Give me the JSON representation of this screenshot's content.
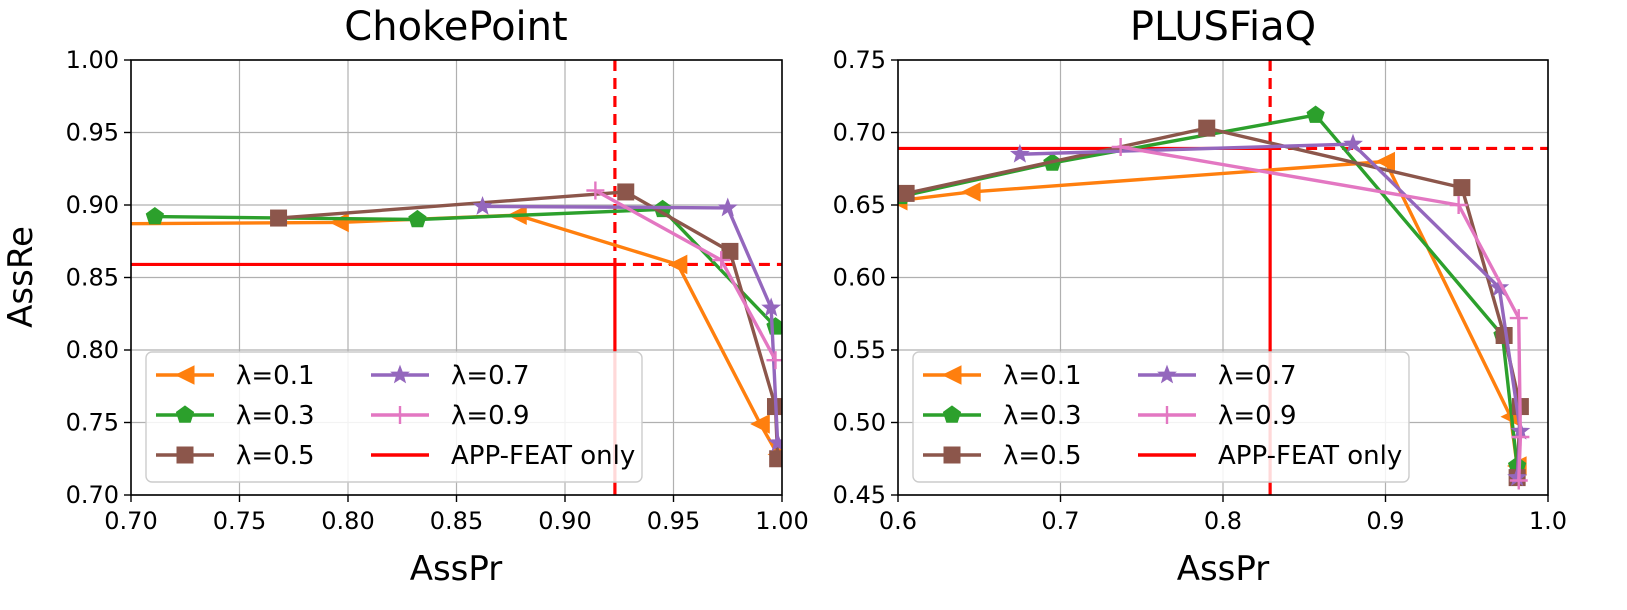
{
  "chart_data": [
    {
      "type": "line",
      "title": "ChokePoint",
      "xlabel": "AssPr",
      "ylabel": "AssRe",
      "xlim": [
        0.7,
        1.0
      ],
      "ylim": [
        0.7,
        1.0
      ],
      "xticks": [
        "0.70",
        "0.75",
        "0.80",
        "0.85",
        "0.90",
        "0.95",
        "1.00"
      ],
      "yticks": [
        "0.70",
        "0.75",
        "0.80",
        "0.85",
        "0.90",
        "0.95",
        "1.00"
      ],
      "grid": true,
      "legend_position": "lower-left",
      "series": [
        {
          "name": "λ=0.1",
          "color": "#ff7f0e",
          "marker": "triangle-left",
          "x": [
            0.69,
            0.796,
            0.878,
            0.952,
            0.99,
            0.998
          ],
          "y": [
            0.887,
            0.888,
            0.893,
            0.859,
            0.749,
            0.728
          ]
        },
        {
          "name": "λ=0.3",
          "color": "#2ca02c",
          "marker": "pentagon",
          "x": [
            0.711,
            0.832,
            0.945,
            0.997
          ],
          "y": [
            0.892,
            0.89,
            0.897,
            0.816
          ]
        },
        {
          "name": "λ=0.5",
          "color": "#8c564b",
          "marker": "square",
          "x": [
            0.768,
            0.928,
            0.976,
            0.997,
            0.998
          ],
          "y": [
            0.891,
            0.909,
            0.868,
            0.761,
            0.725
          ]
        },
        {
          "name": "λ=0.7",
          "color": "#9467bd",
          "marker": "star",
          "x": [
            0.862,
            0.975,
            0.995,
            0.998
          ],
          "y": [
            0.899,
            0.898,
            0.829,
            0.736
          ]
        },
        {
          "name": "λ=0.9",
          "color": "#e377c2",
          "marker": "plus",
          "x": [
            0.914,
            0.972,
            0.997
          ],
          "y": [
            0.91,
            0.862,
            0.793
          ]
        }
      ],
      "baseline": {
        "name": "APP-FEAT only",
        "color": "#ff0000",
        "x": 0.923,
        "y": 0.859
      }
    },
    {
      "type": "line",
      "title": "PLUSFiaQ",
      "xlabel": "AssPr",
      "ylabel": "",
      "xlim": [
        0.6,
        1.0
      ],
      "ylim": [
        0.45,
        0.75
      ],
      "xticks": [
        "0.6",
        "0.7",
        "0.8",
        "0.9",
        "1.0"
      ],
      "yticks": [
        "0.45",
        "0.50",
        "0.55",
        "0.60",
        "0.65",
        "0.70",
        "0.75"
      ],
      "grid": true,
      "legend_position": "lower-left",
      "series": [
        {
          "name": "λ=0.1",
          "color": "#ff7f0e",
          "marker": "triangle-left",
          "x": [
            0.6,
            0.645,
            0.9,
            0.977,
            0.981
          ],
          "y": [
            0.653,
            0.659,
            0.68,
            0.504,
            0.47
          ]
        },
        {
          "name": "λ=0.3",
          "color": "#2ca02c",
          "marker": "pentagon",
          "x": [
            0.602,
            0.695,
            0.857,
            0.972,
            0.981
          ],
          "y": [
            0.656,
            0.679,
            0.712,
            0.56,
            0.47
          ]
        },
        {
          "name": "λ=0.5",
          "color": "#8c564b",
          "marker": "square",
          "x": [
            0.605,
            0.79,
            0.947,
            0.973,
            0.983,
            0.981
          ],
          "y": [
            0.658,
            0.703,
            0.662,
            0.56,
            0.511,
            0.462
          ]
        },
        {
          "name": "λ=0.7",
          "color": "#9467bd",
          "marker": "star",
          "x": [
            0.675,
            0.88,
            0.97,
            0.983,
            0.981
          ],
          "y": [
            0.685,
            0.692,
            0.593,
            0.494,
            0.462
          ]
        },
        {
          "name": "λ=0.9",
          "color": "#e377c2",
          "marker": "plus",
          "x": [
            0.737,
            0.945,
            0.982,
            0.983,
            0.982
          ],
          "y": [
            0.69,
            0.65,
            0.572,
            0.49,
            0.46
          ]
        }
      ],
      "baseline": {
        "name": "APP-FEAT only",
        "color": "#ff0000",
        "x": 0.829,
        "y": 0.689
      }
    }
  ]
}
